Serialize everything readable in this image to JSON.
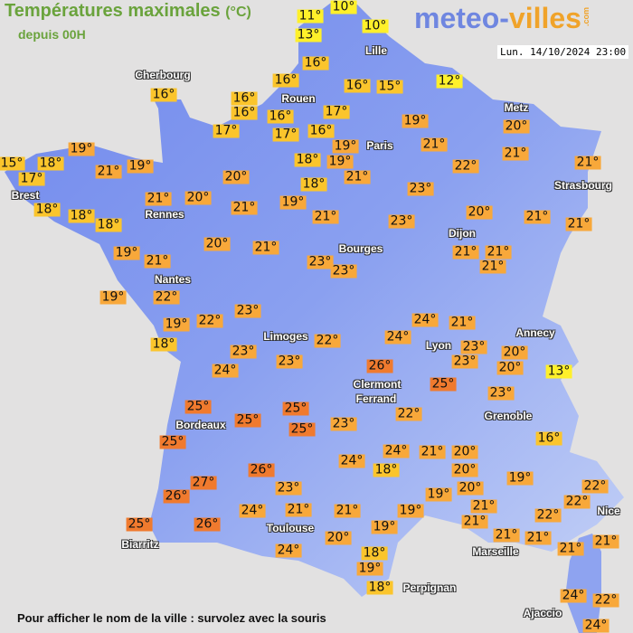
{
  "header": {
    "title": "Températures maximales",
    "title_unit": "(°C)",
    "subtitle": "depuis 00H",
    "logo_part1": "meteo-",
    "logo_part2": "villes",
    "logo_suffix": ".com",
    "datetime": "Lun. 14/10/2024 23:00"
  },
  "footer": "Pour afficher le nom de la ville : survolez avec la souris",
  "colors": {
    "land": "#7b8ff0",
    "sea": "#e2e1e1",
    "cold": "#fff02a",
    "mild": "#fbc52c",
    "warm": "#f8a83a",
    "hot": "#f07a2e"
  },
  "cities": [
    "Cherbourg",
    "Rouen",
    "Lille",
    "Paris",
    "Metz",
    "Brest",
    "Rennes",
    "Strasbourg",
    "Dijon",
    "Bourges",
    "Nantes",
    "Limoges",
    "Annecy",
    "Lyon",
    "Clermont",
    "Ferrand",
    "Grenoble",
    "Bordeaux",
    "Toulouse",
    "Marseille",
    "Nice",
    "Biarritz",
    "Perpignan",
    "Ajaccio"
  ],
  "temperatures": [
    "11°",
    "10°",
    "13°",
    "10°",
    "16°",
    "16°",
    "16°",
    "15°",
    "12°",
    "16°",
    "16°",
    "16°",
    "16°",
    "17°",
    "17°",
    "17°",
    "16°",
    "19°",
    "19°",
    "21°",
    "20°",
    "21°",
    "22°",
    "21°",
    "19°",
    "15°",
    "18°",
    "17°",
    "21°",
    "19°",
    "20°",
    "18°",
    "19°",
    "21°",
    "18°",
    "23°",
    "18°",
    "21°",
    "20°",
    "21°",
    "19°",
    "21°",
    "23°",
    "20°",
    "21°",
    "21°",
    "18°",
    "18°",
    "19°",
    "20°",
    "21°",
    "21°",
    "23°",
    "23°",
    "21°",
    "21°",
    "21°",
    "19°",
    "22°",
    "22°",
    "23°",
    "19°",
    "18°",
    "23°",
    "24°",
    "23°",
    "22°",
    "24°",
    "21°",
    "24°",
    "23°",
    "23°",
    "20°",
    "20°",
    "13°",
    "26°",
    "25°",
    "23°",
    "25°",
    "25°",
    "25°",
    "25°",
    "23°",
    "22°",
    "16°",
    "25°",
    "24°",
    "24°",
    "18°",
    "21°",
    "20°",
    "26°",
    "20°",
    "19°",
    "27°",
    "26°",
    "23°",
    "20°",
    "19°",
    "22°",
    "22°",
    "24°",
    "21°",
    "21°",
    "19°",
    "21°",
    "21°",
    "22°",
    "21°",
    "25°",
    "26°",
    "19°",
    "20°",
    "21°",
    "21°",
    "21°",
    "24°",
    "18°",
    "19°",
    "18°",
    "24°",
    "22°",
    "24°"
  ]
}
